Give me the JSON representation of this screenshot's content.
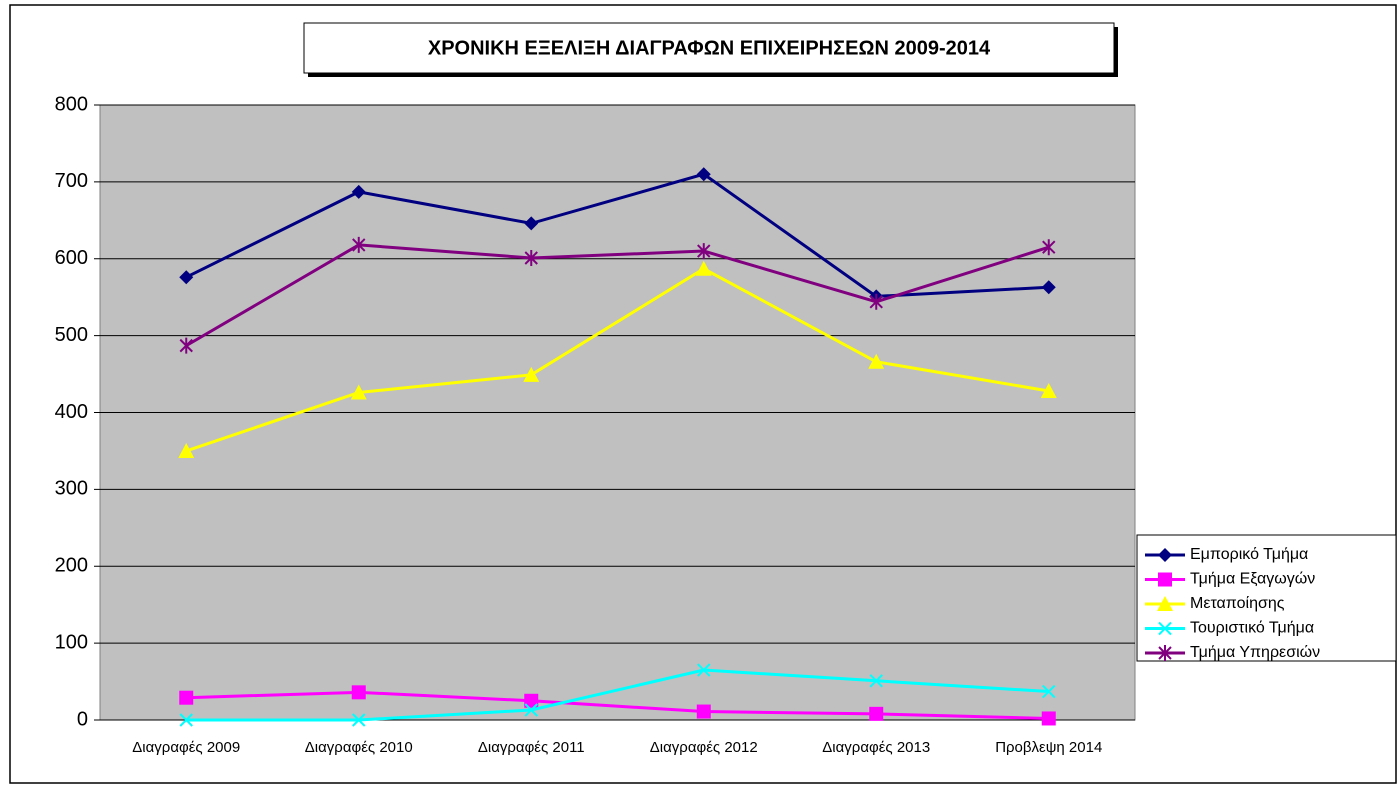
{
  "chart_data": {
    "type": "line",
    "title": "ΧΡΟΝΙΚΗ ΕΞΕΛΙΞΗ ΔΙΑΓΡΑΦΩΝ ΕΠΙΧΕΙΡΗΣΕΩΝ 2009-2014",
    "categories": [
      "Διαγραφές 2009",
      "Διαγραφές 2010",
      "Διαγραφές 2011",
      "Διαγραφές 2012",
      "Διαγραφές 2013",
      "Προβλεψη 2014"
    ],
    "series": [
      {
        "name": "Εμπορικό Τμήμα",
        "color": "#000080",
        "marker": "diamond",
        "values": [
          576,
          687,
          646,
          710,
          551,
          563
        ]
      },
      {
        "name": "Τμήμα Εξαγωγών",
        "color": "#ff00ff",
        "marker": "square",
        "values": [
          29,
          36,
          25,
          11,
          8,
          2
        ]
      },
      {
        "name": "Μεταποίησης",
        "color": "#ffff00",
        "marker": "triangle",
        "values": [
          350,
          426,
          449,
          587,
          466,
          428
        ]
      },
      {
        "name": "Τουριστικό Τμήμα",
        "color": "#00ffff",
        "marker": "x",
        "values": [
          0,
          0,
          13,
          65,
          51,
          37
        ]
      },
      {
        "name": "Τμήμα Υπηρεσιών",
        "color": "#800080",
        "marker": "star",
        "values": [
          487,
          618,
          601,
          610,
          544,
          615
        ]
      }
    ],
    "ylim": [
      0,
      800
    ],
    "yticks": [
      0,
      100,
      200,
      300,
      400,
      500,
      600,
      700,
      800
    ],
    "grid": true,
    "legend": "right"
  }
}
